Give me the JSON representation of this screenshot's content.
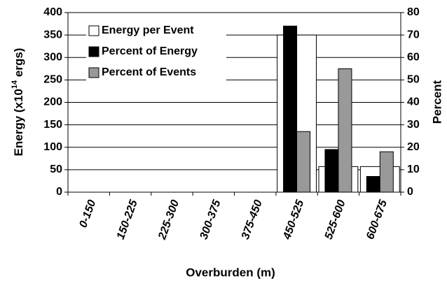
{
  "chart_data": {
    "type": "bar",
    "xlabel": "Overburden (m)",
    "ylabel": {
      "text": "Energy (x10",
      "superscript": "14",
      "suffix": " ergs)"
    },
    "y2label": "Percent",
    "categories": [
      "0-150",
      "150-225",
      "225-300",
      "300-375",
      "375-450",
      "450-525",
      "525-600",
      "600-675"
    ],
    "series": [
      {
        "name": "Energy per Event",
        "color": "#ffffff",
        "axis": "y",
        "values": [
          0,
          0,
          0,
          0,
          0,
          350,
          57,
          57
        ]
      },
      {
        "name": "Percent of Energy",
        "color": "#000000",
        "axis": "y2",
        "values": [
          0,
          0,
          0,
          0,
          0,
          74,
          19,
          7
        ]
      },
      {
        "name": "Percent of Events",
        "color": "#999999",
        "axis": "y2",
        "values": [
          0,
          0,
          0,
          0,
          0,
          27,
          55,
          18
        ]
      }
    ],
    "ylim": [
      0,
      400
    ],
    "yticks": [
      0,
      50,
      100,
      150,
      200,
      250,
      300,
      350,
      400
    ],
    "y2lim": [
      0,
      80
    ],
    "y2ticks": [
      0,
      10,
      20,
      30,
      40,
      50,
      60,
      70,
      80
    ],
    "grid": true,
    "legend": "upper left"
  }
}
